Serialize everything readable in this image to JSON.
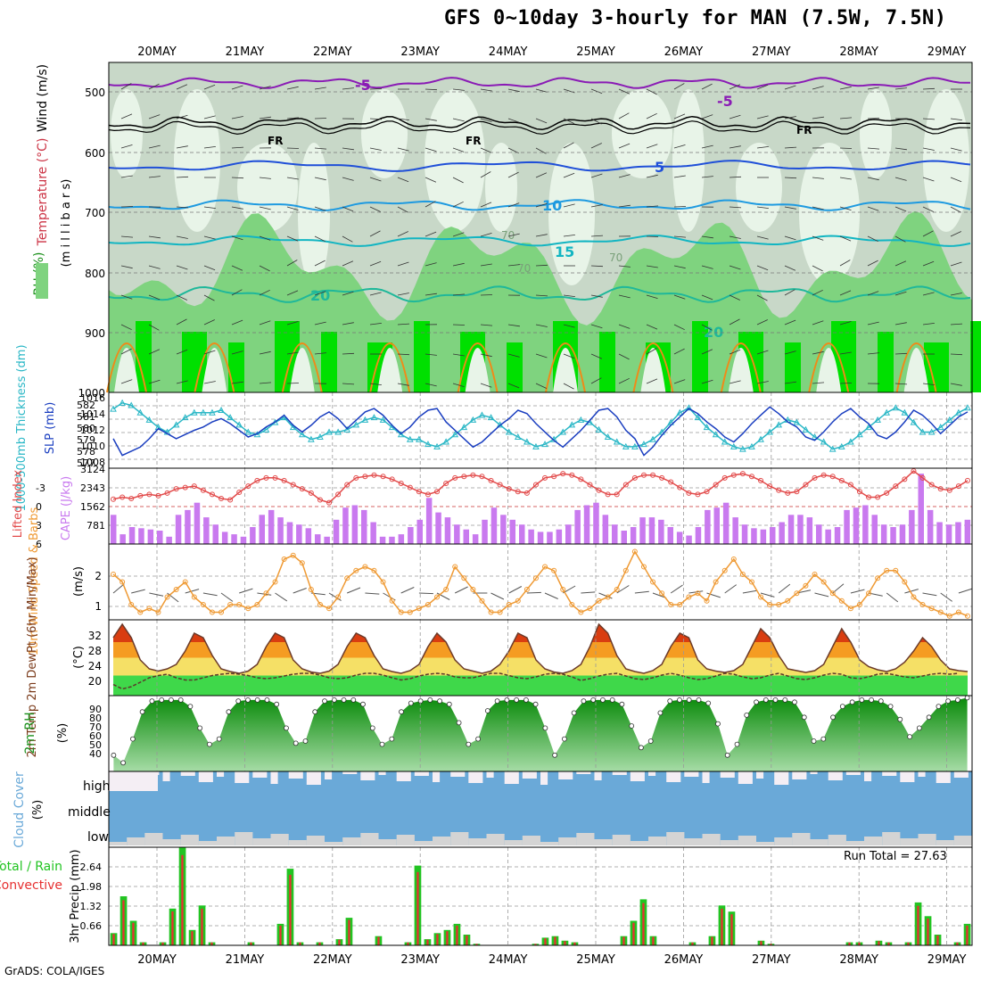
{
  "title": "GFS 0~10day 3-hourly for MAN (7.5W, 7.5N)",
  "credit": "GrADS: COLA/IGES",
  "run_total": "Run Total = 27.63",
  "colors": {
    "rh_light": "#e8f4e8",
    "rh_grey": "#c8d8c8",
    "rh_mid": "#7fd37f",
    "rh_green": "#2ecc2e",
    "rh_bright": "#00e000",
    "temp_purple": "#8a1bb5",
    "temp_blue": "#1f4fd8",
    "temp_lightblue": "#1e9ae0",
    "temp_cyan": "#12b5c2",
    "temp_teal": "#1fb89a",
    "temp_orange": "#f08a18",
    "slp_line": "#1a3ec0",
    "thick_line": "#2ab7c6",
    "lifted_line": "#e24a4a",
    "cape_bar": "#c97aef",
    "wind_line": "#ef9a34",
    "barb": "#555555",
    "t2m_red": "#d93d10",
    "t2m_orange": "#f59c22",
    "t2m_yellow": "#f5e066",
    "t2m_green": "#3fd84a",
    "rh2m_dark": "#0b8b0b",
    "rh2m_light": "#a6dca6",
    "cloud_blue": "#6aa9d8",
    "cloud_white": "#f4eef4",
    "cloud_grey": "#d4d4d4",
    "precip_green": "#22c422",
    "precip_red": "#e63030"
  },
  "dates": [
    "20MAY",
    "21MAY",
    "22MAY",
    "23MAY",
    "24MAY",
    "25MAY",
    "26MAY",
    "27MAY",
    "28MAY",
    "29MAY"
  ],
  "panels": {
    "wind_temp_rh": {
      "ylabel_wind": "Wind (m/s)",
      "ylabel_temp": "Temperature (°C)",
      "ylabel_rh": "RH (%)",
      "ylabel_mb": "(m i l l i b a r s)",
      "yticks": [
        "500",
        "600",
        "700",
        "800",
        "900",
        "1000"
      ],
      "contour_labels": [
        "-5",
        "-5",
        "5",
        "10",
        "15",
        "20",
        "20",
        "FR",
        "FR",
        "FR",
        "70",
        "70",
        "70"
      ]
    },
    "slp": {
      "ylabel_thick": "1000-500mb Thickness (dm)",
      "ylabel_slp": "SLP (mb)",
      "thick_ticks": [
        "582",
        "581",
        "580",
        "579",
        "578",
        "577"
      ],
      "slp_ticks": [
        "1016",
        "1014",
        "1012",
        "1010",
        "1008"
      ]
    },
    "lifted": {
      "ylabel_li": "Lifted Index",
      "ylabel_cape": "CAPE (J/kg)",
      "li_ticks": [
        "-3",
        "0",
        "3",
        "6"
      ],
      "cape_ticks": [
        "3124",
        "2343",
        "1562",
        "781"
      ]
    },
    "wind10m": {
      "ylabel": "10m Wind Speed & Barbs",
      "unit": "(m/s)",
      "yticks": [
        "2",
        "1"
      ]
    },
    "t2m": {
      "ylabel": "2m Temp 2m DewPt (6hr Min/Max)",
      "unit": "(°C)",
      "yticks": [
        "32",
        "28",
        "24",
        "20"
      ]
    },
    "rh2m": {
      "ylabel": "2m RH",
      "unit": "(%)",
      "yticks": [
        "90",
        "80",
        "70",
        "60",
        "50",
        "40"
      ]
    },
    "cloud": {
      "ylabel": "Cloud Cover",
      "unit": "(%)",
      "levels": [
        "high",
        "middle",
        "low"
      ]
    },
    "precip": {
      "ylabel_total": "Total / Rain",
      "ylabel_conv": "Convective",
      "ylabel": "3hr Precip (mm)",
      "yticks": [
        "2.64",
        "1.98",
        "1.32",
        "0.66"
      ]
    }
  },
  "chart_data": [
    {
      "type": "line",
      "name": "SLP",
      "yunit": "mb",
      "ylim": [
        1008,
        1016
      ],
      "x_step_hours": 3,
      "values": [
        1011,
        1009,
        1009.5,
        1010,
        1011,
        1012.2,
        1011.6,
        1011,
        1011.5,
        1012,
        1012.4,
        1013,
        1013.4,
        1012.8,
        1012,
        1011.2,
        1011.6,
        1012.4,
        1013,
        1013.8,
        1012.6,
        1011.8,
        1012.6,
        1013.6,
        1014.2,
        1013.4,
        1012.2,
        1013.2,
        1014.2,
        1014.6,
        1013.8,
        1012.6,
        1011.6,
        1012.4,
        1013.6,
        1014.4,
        1014.6,
        1013,
        1012,
        1011,
        1010,
        1010.6,
        1011.6,
        1012.6,
        1013.4,
        1014.4,
        1014,
        1012.8,
        1011.8,
        1010.8,
        1010,
        1011,
        1012,
        1013.2,
        1014.4,
        1014.6,
        1013.6,
        1012,
        1011,
        1009,
        1010,
        1011.4,
        1012.6,
        1013.6,
        1014.6,
        1014,
        1013,
        1012.2,
        1011.2,
        1010.6,
        1011.6,
        1012.8,
        1013.8,
        1014.8,
        1014,
        1013,
        1012.4,
        1011.2,
        1010.8,
        1011.8,
        1013,
        1014,
        1014.6,
        1013.6,
        1012.8,
        1011.4,
        1011,
        1011.8,
        1013,
        1014.4,
        1013.8,
        1012.8,
        1011.6,
        1012.6,
        1013.6,
        1014.2
      ]
    },
    {
      "type": "line",
      "name": "Thickness",
      "yunit": "dm",
      "ylim": [
        577,
        582.5
      ],
      "values": [
        581.5,
        582,
        581.8,
        581.2,
        580.6,
        580,
        579.6,
        580.2,
        580.8,
        581.2,
        581.2,
        581.2,
        581.4,
        580.8,
        580.2,
        579.6,
        579.4,
        579.8,
        580.4,
        580.8,
        580,
        579.4,
        579,
        579.2,
        579.6,
        579.6,
        579.8,
        580.2,
        580.6,
        580.8,
        580.6,
        580,
        579.4,
        579,
        579,
        578.6,
        578.4,
        578.8,
        579.4,
        580,
        580.6,
        581,
        580.8,
        580.2,
        579.6,
        579.2,
        578.8,
        578.4,
        578.6,
        579,
        579.6,
        580.2,
        580.6,
        580.4,
        579.8,
        579.2,
        578.8,
        578.4,
        578.4,
        578.6,
        579,
        579.6,
        580.4,
        581.2,
        581.6,
        580.8,
        580,
        579.4,
        578.8,
        578.4,
        578.2,
        578.4,
        579,
        579.6,
        580.2,
        580.6,
        580.4,
        579.8,
        579.2,
        578.8,
        578.2,
        578.4,
        578.8,
        579.4,
        580,
        580.6,
        581.2,
        581.6,
        581.2,
        580.4,
        579.6,
        579.6,
        580,
        580.6,
        581.2,
        581.6
      ]
    },
    {
      "type": "bar",
      "name": "CAPE",
      "yunit": "J/kg",
      "ylim": [
        0,
        3124
      ],
      "values": [
        1200,
        400,
        700,
        650,
        600,
        550,
        300,
        1200,
        1400,
        1700,
        1100,
        800,
        500,
        400,
        300,
        700,
        1200,
        1400,
        1100,
        900,
        800,
        650,
        400,
        300,
        1000,
        1500,
        1600,
        1400,
        900,
        300,
        300,
        400,
        700,
        1000,
        1900,
        1300,
        1100,
        800,
        600,
        400,
        1000,
        1500,
        1200,
        1000,
        800,
        600,
        500,
        500,
        600,
        800,
        1400,
        1600,
        1700,
        1200,
        800,
        550,
        700,
        1100,
        1100,
        1000,
        700,
        500,
        350,
        700,
        1400,
        1500,
        1700,
        1100,
        800,
        650,
        600,
        700,
        900,
        1200,
        1200,
        1100,
        800,
        600,
        700,
        1400,
        1500,
        1600,
        1200,
        800,
        700,
        800,
        1400,
        2900,
        1400,
        900,
        800,
        900,
        1000
      ]
    },
    {
      "type": "line",
      "name": "Lifted Index",
      "yunit": "",
      "ylim": [
        6,
        -5
      ],
      "values": [
        -0.5,
        -0.8,
        -0.6,
        -1,
        -1.2,
        -1,
        -1.4,
        -2,
        -2.2,
        -2.4,
        -1.8,
        -1.2,
        -0.6,
        -0.4,
        -1.5,
        -2.4,
        -3.2,
        -3.6,
        -3.6,
        -3.2,
        -2.6,
        -2,
        -1.4,
        -0.4,
        0,
        -1.2,
        -2.6,
        -3.6,
        -3.8,
        -4,
        -3.8,
        -3.4,
        -2.8,
        -2.2,
        -1.6,
        -1.2,
        -1.6,
        -2.8,
        -3.6,
        -3.8,
        -4,
        -3.8,
        -3.2,
        -2.6,
        -2,
        -1.6,
        -1.4,
        -2.6,
        -3.6,
        -3.8,
        -4.2,
        -4,
        -3.4,
        -2.6,
        -1.8,
        -1.2,
        -1.2,
        -2.6,
        -3.6,
        -4,
        -4,
        -3.6,
        -3,
        -2.2,
        -1.4,
        -1.2,
        -1.6,
        -2.6,
        -3.6,
        -4,
        -4.2,
        -3.8,
        -3.2,
        -2.4,
        -1.8,
        -1.4,
        -1.6,
        -2.6,
        -3.6,
        -4,
        -3.8,
        -3.2,
        -2.6,
        -1.6,
        -0.8,
        -0.8,
        -1.4,
        -2.4,
        -3.4,
        -4.6,
        -3.6,
        -2.6,
        -2,
        -1.8,
        -2.4,
        -3.2
      ]
    },
    {
      "type": "line",
      "name": "10m Wind Speed",
      "yunit": "m/s",
      "ylim": [
        0.8,
        2.8
      ],
      "values": [
        2,
        1.8,
        1.2,
        1,
        1.1,
        1,
        1.4,
        1.6,
        1.8,
        1.4,
        1.2,
        1,
        1,
        1.2,
        1.2,
        1.1,
        1.2,
        1.5,
        1.8,
        2.4,
        2.5,
        2.3,
        1.6,
        1.2,
        1.1,
        1.4,
        1.9,
        2.1,
        2.2,
        2.1,
        1.8,
        1.3,
        1,
        1,
        1.1,
        1.2,
        1.4,
        1.6,
        2.2,
        1.9,
        1.6,
        1.3,
        1,
        1,
        1.2,
        1.3,
        1.6,
        1.9,
        2.2,
        2.1,
        1.6,
        1.2,
        1,
        1.1,
        1.3,
        1.4,
        1.6,
        2.1,
        2.6,
        2.2,
        1.8,
        1.5,
        1.2,
        1.2,
        1.4,
        1.5,
        1.3,
        1.8,
        2.1,
        2.4,
        2,
        1.8,
        1.4,
        1.2,
        1.2,
        1.3,
        1.5,
        1.7,
        2,
        1.8,
        1.5,
        1.3,
        1.1,
        1.2,
        1.5,
        1.9,
        2.1,
        2.1,
        1.8,
        1.4,
        1.2,
        1.1,
        1,
        0.9,
        1,
        0.9
      ]
    },
    {
      "type": "area",
      "name": "2m Temp",
      "yunit": "°C",
      "ylim": [
        17,
        34
      ],
      "values": [
        30,
        33,
        30,
        25,
        23,
        22.5,
        23,
        24,
        27,
        31,
        30,
        26,
        23,
        22.4,
        22,
        22.5,
        24,
        28,
        31,
        30,
        25,
        23,
        22.3,
        22,
        22.5,
        24,
        28,
        31,
        30,
        26,
        23,
        22.4,
        22,
        22.6,
        24,
        28,
        31,
        29,
        25,
        23,
        22.5,
        22,
        22.5,
        24,
        27,
        31,
        30,
        25,
        23,
        22.3,
        22,
        22.6,
        24,
        28,
        33,
        31,
        26,
        23,
        22.4,
        22,
        22.6,
        24,
        28,
        31,
        30,
        25,
        23,
        22.5,
        22.2,
        22.6,
        24,
        28,
        32,
        30,
        26,
        23,
        22.6,
        22.2,
        22.6,
        24,
        28,
        32,
        29,
        25,
        23.5,
        22.8,
        22.4,
        23,
        24.5,
        27,
        30,
        28,
        25,
        23,
        22.6,
        22.4
      ]
    },
    {
      "type": "line",
      "name": "2m DewPt",
      "yunit": "°C",
      "ylim": [
        17,
        34
      ],
      "values": [
        19.5,
        18.5,
        19,
        20,
        21,
        21.5,
        21.8,
        21,
        20.5,
        20.5,
        21,
        21.5,
        21.8,
        22,
        21.8,
        21.5,
        21,
        20.8,
        21,
        21.4,
        21.8,
        22,
        22,
        21.6,
        21,
        20.8,
        21,
        21.6,
        22,
        22,
        21.6,
        21,
        20.5,
        20.8,
        21.4,
        21.8,
        22,
        21.8,
        21.2,
        21,
        21,
        21.5,
        22,
        22,
        21.5,
        21,
        20.8,
        21.2,
        21.8,
        22,
        21.8,
        21.2,
        20.4,
        20.8,
        21.4,
        21.8,
        22,
        21.4,
        20.8,
        20.6,
        21,
        21.6,
        22,
        21.6,
        21,
        20.6,
        20.8,
        21.4,
        22,
        21.8,
        21.2,
        20.8,
        21,
        21.6,
        22,
        21.4,
        20.8,
        20.6,
        21,
        21.6,
        22,
        21.8,
        21,
        20.8,
        21.2,
        21.8,
        22,
        21.6,
        21.2,
        21,
        21.4,
        21.8,
        22,
        21.8,
        22
      ]
    },
    {
      "type": "area",
      "name": "2m RH",
      "yunit": "%",
      "ylim": [
        30,
        100
      ],
      "values": [
        45,
        38,
        60,
        85,
        95,
        96,
        96,
        96,
        90,
        70,
        55,
        60,
        85,
        95,
        96,
        96,
        96,
        92,
        70,
        56,
        58,
        85,
        95,
        96,
        96,
        96,
        92,
        70,
        55,
        60,
        85,
        93,
        95,
        96,
        95,
        92,
        75,
        55,
        60,
        86,
        95,
        96,
        96,
        96,
        92,
        70,
        45,
        60,
        84,
        95,
        96,
        96,
        96,
        92,
        72,
        52,
        58,
        84,
        95,
        96,
        96,
        96,
        93,
        74,
        45,
        55,
        82,
        94,
        96,
        96,
        96,
        94,
        80,
        58,
        60,
        80,
        90,
        94,
        96,
        96,
        95,
        90,
        78,
        62,
        70,
        80,
        90,
        95,
        96,
        98
      ]
    },
    {
      "type": "bar",
      "name": "3hr Precip Total",
      "yunit": "mm",
      "ylim": [
        0,
        3.2
      ],
      "values": [
        0.4,
        1.6,
        0.8,
        0.1,
        0,
        0.1,
        1.2,
        3.2,
        0.5,
        1.3,
        0.1,
        0,
        0,
        0,
        0.1,
        0,
        0,
        0.7,
        2.5,
        0.1,
        0,
        0.1,
        0,
        0.2,
        0.9,
        0,
        0,
        0.3,
        0,
        0,
        0.1,
        2.6,
        0.2,
        0.4,
        0.5,
        0.7,
        0.35,
        0.05,
        0,
        0,
        0,
        0,
        0,
        0.05,
        0.25,
        0.3,
        0.15,
        0.1,
        0,
        0,
        0,
        0,
        0.3,
        0.8,
        1.5,
        0.3,
        0,
        0,
        0,
        0.1,
        0,
        0.3,
        1.3,
        1.1,
        0,
        0,
        0.15,
        0.05,
        0,
        0,
        0,
        0,
        0,
        0,
        0,
        0.1,
        0.1,
        0,
        0.15,
        0.1,
        0,
        0.1,
        1.4,
        0.95,
        0.35,
        0,
        0.1,
        0.7
      ]
    }
  ]
}
